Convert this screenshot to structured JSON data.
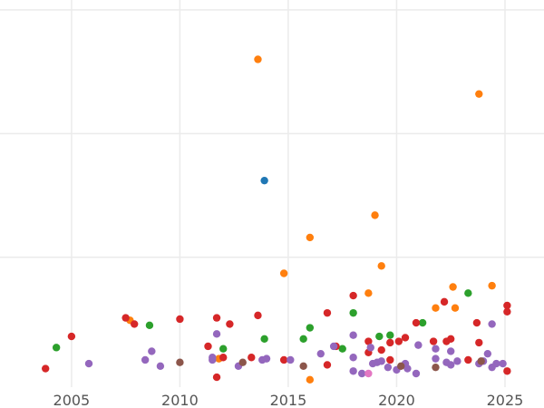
{
  "chart_data": {
    "type": "scatter",
    "title": "",
    "xlabel": "",
    "ylabel": "",
    "xlim": [
      2001.7,
      2026.8
    ],
    "ylim": [
      -0.05,
      3.08
    ],
    "grid": true,
    "legend": "none",
    "x_ticks": [
      2005,
      2010,
      2015,
      2020,
      2025
    ],
    "x_tick_labels": [
      "2005",
      "2010",
      "2015",
      "2020",
      "2025"
    ],
    "y_ticks": [
      1,
      2,
      3
    ],
    "y_tick_labels": [
      "",
      "",
      ""
    ],
    "series": [
      {
        "color": "#1f77b4",
        "points": [
          [
            2013.9,
            1.62
          ]
        ]
      },
      {
        "color": "#ff7f0e",
        "points": [
          [
            2013.6,
            2.6
          ],
          [
            2023.8,
            2.32
          ],
          [
            2019.0,
            1.34
          ],
          [
            2016.0,
            1.16
          ],
          [
            2014.8,
            0.87
          ],
          [
            2019.3,
            0.93
          ],
          [
            2022.6,
            0.76
          ],
          [
            2024.4,
            0.77
          ],
          [
            2018.7,
            0.71
          ],
          [
            2021.8,
            0.59
          ],
          [
            2022.7,
            0.59
          ],
          [
            2007.7,
            0.49
          ],
          [
            2016.0,
            0.01
          ],
          [
            2011.8,
            0.18
          ]
        ]
      },
      {
        "color": "#2ca02c",
        "points": [
          [
            2004.3,
            0.27
          ],
          [
            2008.6,
            0.45
          ],
          [
            2012.0,
            0.26
          ],
          [
            2013.9,
            0.34
          ],
          [
            2015.7,
            0.34
          ],
          [
            2016.0,
            0.43
          ],
          [
            2017.5,
            0.26
          ],
          [
            2018.0,
            0.55
          ],
          [
            2019.2,
            0.36
          ],
          [
            2019.7,
            0.37
          ],
          [
            2021.2,
            0.47
          ],
          [
            2023.3,
            0.71
          ]
        ]
      },
      {
        "color": "#d62728",
        "points": [
          [
            2003.8,
            0.1
          ],
          [
            2005.0,
            0.36
          ],
          [
            2007.5,
            0.51
          ],
          [
            2007.9,
            0.46
          ],
          [
            2010.0,
            0.5
          ],
          [
            2011.3,
            0.28
          ],
          [
            2011.7,
            0.51
          ],
          [
            2012.3,
            0.46
          ],
          [
            2013.6,
            0.53
          ],
          [
            2011.7,
            0.03
          ],
          [
            2012.0,
            0.19
          ],
          [
            2013.3,
            0.19
          ],
          [
            2014.8,
            0.17
          ],
          [
            2016.8,
            0.55
          ],
          [
            2016.8,
            0.13
          ],
          [
            2017.2,
            0.28
          ],
          [
            2018.0,
            0.69
          ],
          [
            2018.7,
            0.32
          ],
          [
            2018.7,
            0.23
          ],
          [
            2019.3,
            0.25
          ],
          [
            2019.7,
            0.31
          ],
          [
            2020.1,
            0.32
          ],
          [
            2020.4,
            0.35
          ],
          [
            2020.9,
            0.47
          ],
          [
            2019.7,
            0.17
          ],
          [
            2021.7,
            0.32
          ],
          [
            2022.2,
            0.64
          ],
          [
            2022.3,
            0.32
          ],
          [
            2022.5,
            0.34
          ],
          [
            2023.3,
            0.17
          ],
          [
            2023.7,
            0.47
          ],
          [
            2023.8,
            0.31
          ],
          [
            2025.1,
            0.61
          ],
          [
            2025.1,
            0.56
          ],
          [
            2025.1,
            0.08
          ]
        ]
      },
      {
        "color": "#9467bd",
        "points": [
          [
            2005.8,
            0.14
          ],
          [
            2008.4,
            0.17
          ],
          [
            2008.7,
            0.24
          ],
          [
            2009.1,
            0.12
          ],
          [
            2011.5,
            0.19
          ],
          [
            2011.7,
            0.38
          ],
          [
            2011.5,
            0.17
          ],
          [
            2012.7,
            0.12
          ],
          [
            2013.8,
            0.17
          ],
          [
            2014.0,
            0.18
          ],
          [
            2015.1,
            0.17
          ],
          [
            2016.5,
            0.22
          ],
          [
            2017.1,
            0.28
          ],
          [
            2018.0,
            0.37
          ],
          [
            2018.0,
            0.19
          ],
          [
            2018.0,
            0.08
          ],
          [
            2018.4,
            0.06
          ],
          [
            2018.8,
            0.27
          ],
          [
            2018.9,
            0.14
          ],
          [
            2019.1,
            0.15
          ],
          [
            2019.3,
            0.16
          ],
          [
            2019.6,
            0.11
          ],
          [
            2020.0,
            0.09
          ],
          [
            2020.4,
            0.14
          ],
          [
            2020.5,
            0.1
          ],
          [
            2020.9,
            0.06
          ],
          [
            2021.0,
            0.29
          ],
          [
            2021.8,
            0.26
          ],
          [
            2021.8,
            0.18
          ],
          [
            2022.3,
            0.15
          ],
          [
            2022.5,
            0.24
          ],
          [
            2022.5,
            0.13
          ],
          [
            2022.8,
            0.16
          ],
          [
            2023.8,
            0.14
          ],
          [
            2024.0,
            0.16
          ],
          [
            2024.2,
            0.22
          ],
          [
            2024.4,
            0.11
          ],
          [
            2024.6,
            0.14
          ],
          [
            2024.9,
            0.14
          ],
          [
            2024.4,
            0.46
          ]
        ]
      },
      {
        "color": "#8c564b",
        "points": [
          [
            2010.0,
            0.15
          ],
          [
            2012.9,
            0.15
          ],
          [
            2015.7,
            0.12
          ],
          [
            2020.2,
            0.12
          ],
          [
            2021.8,
            0.11
          ],
          [
            2023.9,
            0.16
          ]
        ]
      },
      {
        "color": "#e377c2",
        "points": [
          [
            2018.7,
            0.06
          ]
        ]
      }
    ]
  }
}
